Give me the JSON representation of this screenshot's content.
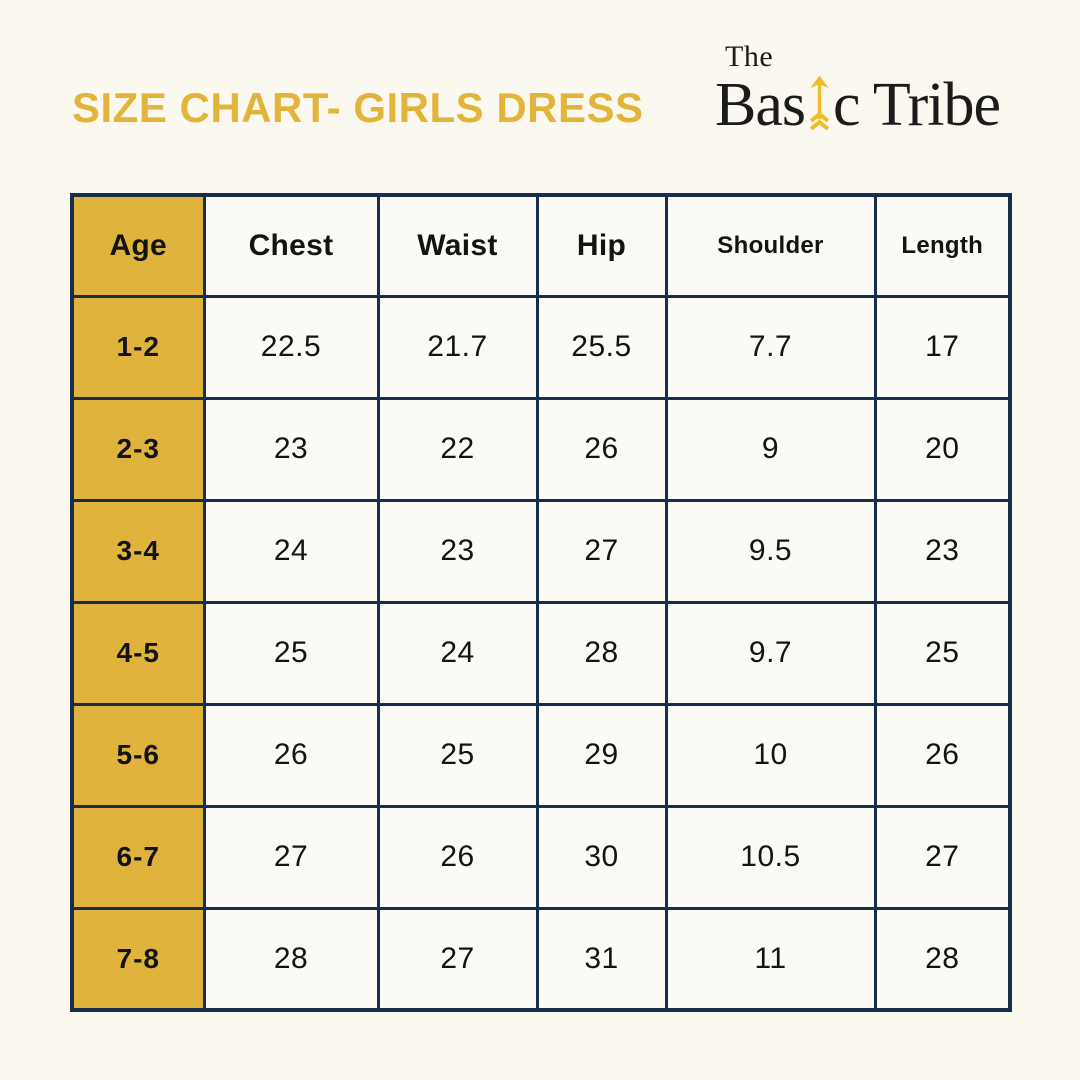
{
  "header": {
    "title": "SIZE CHART- GIRLS DRESS",
    "logo": {
      "the": "The",
      "name_pre": "Bas",
      "name_post": "c Tribe",
      "arrow_icon": "arrow-up-icon"
    }
  },
  "table": {
    "columns": [
      "Age",
      "Chest",
      "Waist",
      "Hip",
      "Shoulder",
      "Length"
    ],
    "rows": [
      {
        "age": "1-2",
        "values": [
          "22.5",
          "21.7",
          "25.5",
          "7.7",
          "17"
        ]
      },
      {
        "age": "2-3",
        "values": [
          "23",
          "22",
          "26",
          "9",
          "20"
        ]
      },
      {
        "age": "3-4",
        "values": [
          "24",
          "23",
          "27",
          "9.5",
          "23"
        ]
      },
      {
        "age": "4-5",
        "values": [
          "25",
          "24",
          "28",
          "9.7",
          "25"
        ]
      },
      {
        "age": "5-6",
        "values": [
          "26",
          "25",
          "29",
          "10",
          "26"
        ]
      },
      {
        "age": "6-7",
        "values": [
          "27",
          "26",
          "30",
          "10.5",
          "27"
        ]
      },
      {
        "age": "7-8",
        "values": [
          "28",
          "27",
          "31",
          "11",
          "28"
        ]
      }
    ]
  },
  "colors": {
    "accent_gold": "#E2B53A",
    "cell_gold": "#E0B33C",
    "border_navy": "#142E4B",
    "background_cream": "#FBF8EF",
    "cell_cream": "#FCFAF4",
    "text_dark": "#131313",
    "logo_black": "#1B1B1B",
    "arrow_gold": "#EFBD28"
  },
  "chart_data": {
    "type": "table",
    "title": "SIZE CHART- GIRLS DRESS",
    "columns": [
      "Age",
      "Chest",
      "Waist",
      "Hip",
      "Shoulder",
      "Length"
    ],
    "rows": [
      [
        "1-2",
        22.5,
        21.7,
        25.5,
        7.7,
        17
      ],
      [
        "2-3",
        23,
        22,
        26,
        9,
        20
      ],
      [
        "3-4",
        24,
        23,
        27,
        9.5,
        23
      ],
      [
        "4-5",
        25,
        24,
        28,
        9.7,
        25
      ],
      [
        "5-6",
        26,
        25,
        29,
        10,
        26
      ],
      [
        "6-7",
        27,
        26,
        30,
        10.5,
        27
      ],
      [
        "7-8",
        28,
        27,
        31,
        11,
        28
      ]
    ]
  }
}
